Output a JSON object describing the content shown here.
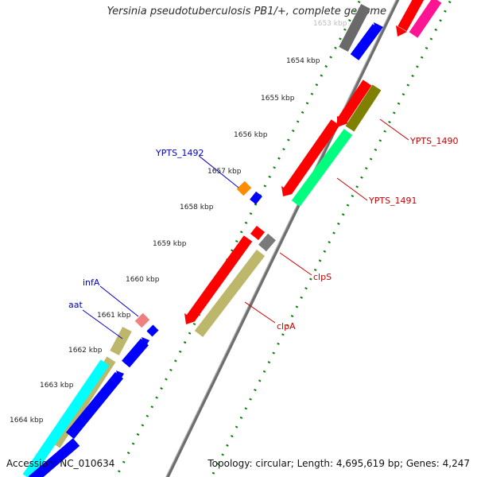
{
  "header": {
    "title": "Yersinia pseudotuberculosis PB1/+, complete genome"
  },
  "footer": {
    "accession": "Accession: NC_010634",
    "topology": "Topology: circular; Length: 4,695,619 bp; Genes: 4,247"
  },
  "ticks": [
    {
      "label": "1653 kbp"
    },
    {
      "label": "1654 kbp"
    },
    {
      "label": "1655 kbp"
    },
    {
      "label": "1656 kbp"
    },
    {
      "label": "1657 kbp"
    },
    {
      "label": "1658 kbp"
    },
    {
      "label": "1659 kbp"
    },
    {
      "label": "1660 kbp"
    },
    {
      "label": "1661 kbp"
    },
    {
      "label": "1662 kbp"
    },
    {
      "label": "1663 kbp"
    },
    {
      "label": "1664 kbp"
    }
  ],
  "gene_labels": {
    "ypts_1492": "YPTS_1492",
    "infA": "infA",
    "aat": "aat",
    "ypts_1490": "YPTS_1490",
    "ypts_1491": "YPTS_1491",
    "clpS": "clpS",
    "clpA": "clpA"
  },
  "colors": {
    "red": "#ff0000",
    "blue": "#0000ff",
    "olive": "#808000",
    "khaki": "#bdb76b",
    "cyan": "#00ffff",
    "spring_green": "#00ff7f",
    "gray": "#707070",
    "pink": "#ff1493",
    "orange": "#ff8c00",
    "light_coral": "#f08080",
    "dark_green_dots": "#0a7f0a",
    "label_blue": "#0000cc",
    "label_red": "#cc0000"
  }
}
